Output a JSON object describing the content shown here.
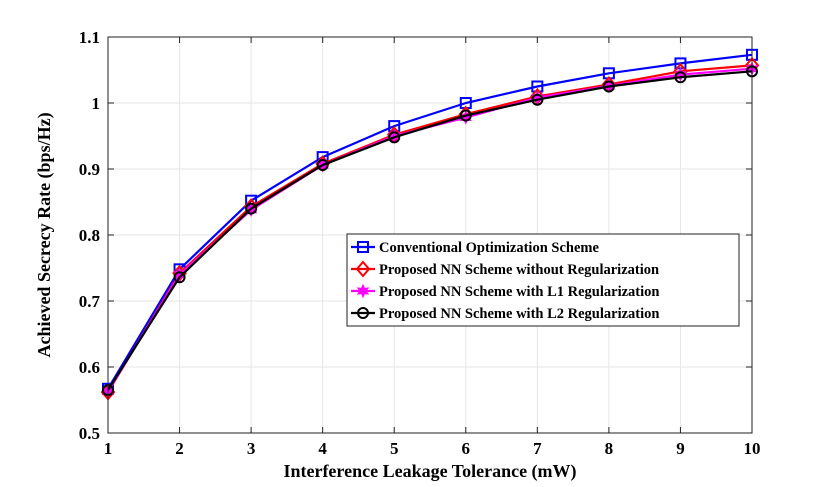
{
  "chart_data": {
    "type": "line",
    "title": "",
    "xlabel": "Interference Leakage Tolerance (mW)",
    "ylabel": "Achieved Secrecy Rate (bps/Hz)",
    "x": [
      1,
      2,
      3,
      4,
      5,
      6,
      7,
      8,
      9,
      10
    ],
    "xlim": [
      1,
      10
    ],
    "ylim": [
      0.5,
      1.1
    ],
    "xticks": [
      "1",
      "2",
      "3",
      "4",
      "5",
      "6",
      "7",
      "8",
      "9",
      "10"
    ],
    "yticks": [
      "0.5",
      "0.6",
      "0.7",
      "0.8",
      "0.9",
      "1",
      "1.1"
    ],
    "grid": true,
    "legend_position": "center-right",
    "series": [
      {
        "name": "Conventional Optimization Scheme",
        "color": "#0000ff",
        "marker": "square",
        "values": [
          0.567,
          0.748,
          0.852,
          0.918,
          0.965,
          1.0,
          1.025,
          1.045,
          1.06,
          1.073
        ]
      },
      {
        "name": "Proposed NN Scheme without Regularization",
        "color": "#ff0000",
        "marker": "diamond",
        "values": [
          0.562,
          0.742,
          0.843,
          0.908,
          0.952,
          0.983,
          1.01,
          1.028,
          1.048,
          1.057
        ]
      },
      {
        "name": "Proposed NN Scheme with L1 Regularization",
        "color": "#ff00ff",
        "marker": "hexagram",
        "values": [
          0.563,
          0.74,
          0.838,
          0.906,
          0.95,
          0.978,
          1.008,
          1.026,
          1.043,
          1.052
        ]
      },
      {
        "name": "Proposed NN Scheme with L2 Regularization",
        "color": "#000000",
        "marker": "circle",
        "values": [
          0.565,
          0.736,
          0.84,
          0.906,
          0.948,
          0.981,
          1.005,
          1.025,
          1.039,
          1.048
        ]
      }
    ]
  }
}
